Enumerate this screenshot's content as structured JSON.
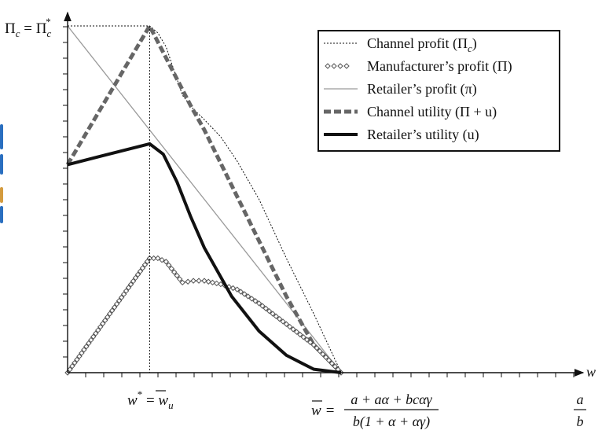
{
  "chart_data": {
    "type": "line",
    "x_axis_symbol": "w",
    "y_axis_label": {
      "left": "Π",
      "left_sub": "c",
      "eq": " = ",
      "right": "Π",
      "right_sub": "c",
      "right_sup": "*"
    },
    "x_ticks": {
      "w_star": {
        "w": "w",
        "star": "*",
        "eq": " = ",
        "wbar": "w",
        "sub": "u"
      },
      "w_bar": {
        "lhs": "w",
        "eq": " = ",
        "numerator": "a + aα + bcαγ",
        "denominator": "b(1 + α + αγ)"
      },
      "a_over_b": {
        "numerator": "a",
        "denominator": "b"
      }
    },
    "x_key_points": {
      "w_star": 0.3,
      "w_bar": 1.0
    },
    "ylim": [
      0,
      1
    ],
    "xlim": [
      0,
      1.8
    ],
    "legend_position": "top-right",
    "grid": false,
    "series": [
      {
        "name": "Channel profit (Πc)",
        "legend": {
          "prefix": "Channel profit (Π",
          "sub": "c",
          "suffix": ")"
        },
        "style": "thin-dotted",
        "x": [
          0,
          0.3,
          0.33,
          0.36,
          0.39,
          0.42,
          0.46,
          0.5,
          0.56,
          0.62,
          0.7,
          0.8,
          0.9,
          1.0
        ],
        "y": [
          1,
          1,
          0.98,
          0.94,
          0.87,
          0.8,
          0.76,
          0.73,
          0.68,
          0.61,
          0.5,
          0.33,
          0.17,
          0
        ]
      },
      {
        "name": "Manufacturer's profit (Π)",
        "legend": {
          "prefix": "Manufacturer’s profit (Π)",
          "sub": "",
          "suffix": ""
        },
        "style": "hollow-diamonds",
        "x": [
          0,
          0.3,
          0.33,
          0.36,
          0.39,
          0.42,
          0.46,
          0.5,
          0.56,
          0.62,
          0.7,
          0.8,
          0.9,
          1.0
        ],
        "y": [
          0,
          0.33,
          0.33,
          0.32,
          0.29,
          0.26,
          0.265,
          0.265,
          0.255,
          0.24,
          0.2,
          0.14,
          0.08,
          0
        ]
      },
      {
        "name": "Retailer's profit (π)",
        "legend": {
          "prefix": "Retailer’s profit (π)",
          "sub": "",
          "suffix": ""
        },
        "style": "thin-solid-gray",
        "x": [
          0,
          1.0
        ],
        "y": [
          1,
          0
        ]
      },
      {
        "name": "Channel utility (Π+u)",
        "legend": {
          "prefix": "Channel utility (Π + ",
          "sub": "",
          "suffix": "u)"
        },
        "style": "thick-dashed",
        "x": [
          0,
          0.3,
          0.45,
          0.5,
          0.6,
          0.7,
          0.8,
          0.9,
          1.0
        ],
        "y": [
          0.6,
          1,
          0.77,
          0.7,
          0.54,
          0.38,
          0.22,
          0.08,
          0
        ]
      },
      {
        "name": "Retailer's utility (u)",
        "legend": {
          "prefix": "Retailer’s utility (",
          "sub": "",
          "suffix": "u)"
        },
        "style": "thick-solid",
        "x": [
          0,
          0.3,
          0.35,
          0.4,
          0.45,
          0.5,
          0.6,
          0.7,
          0.8,
          0.9,
          1.0
        ],
        "y": [
          0.6,
          0.66,
          0.63,
          0.55,
          0.45,
          0.36,
          0.22,
          0.12,
          0.05,
          0.01,
          0
        ]
      }
    ],
    "colors": {
      "line": "#111111",
      "gray": "#9a9a9a",
      "dark_gray": "#666666"
    }
  }
}
